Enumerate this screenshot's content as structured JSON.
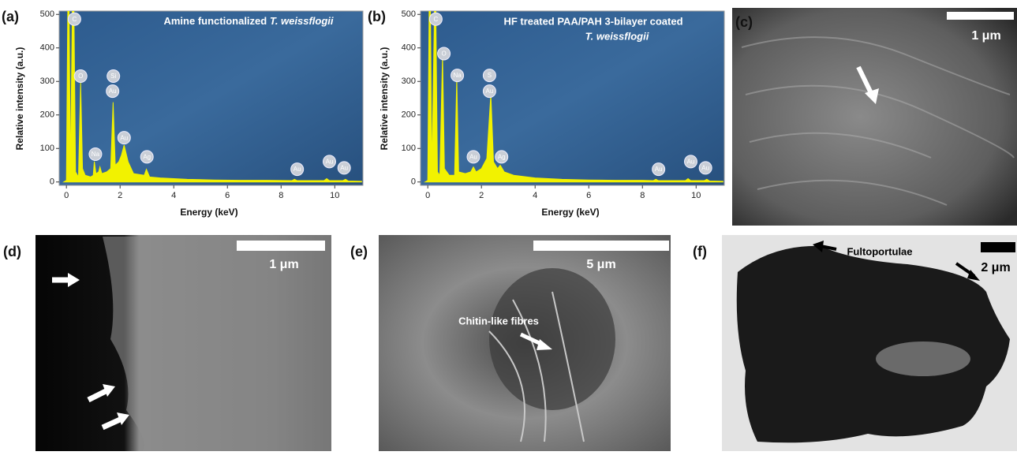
{
  "chart_data": [
    {
      "type": "area",
      "panel_label": "(a)",
      "title": [
        "Amine functionalized",
        "T. weissflogii"
      ],
      "x_label": "Energy (keV)",
      "y_label": "Relative intensity (a.u.)",
      "color": "#f2f200",
      "xlim": [
        -0.27,
        11.05
      ],
      "xticks": [
        0,
        2,
        4,
        6,
        8,
        10
      ],
      "ylim": [
        -10,
        510
      ],
      "yticks": [
        0,
        100,
        200,
        300,
        400,
        500
      ],
      "x": [
        -0.1,
        0,
        0.05,
        0.1,
        0.15,
        0.22,
        0.28,
        0.34,
        0.45,
        0.53,
        0.6,
        0.7,
        0.9,
        1.0,
        1.04,
        1.1,
        1.2,
        1.25,
        1.32,
        1.5,
        1.65,
        1.74,
        1.82,
        1.95,
        2.05,
        2.15,
        2.3,
        2.5,
        2.9,
        2.98,
        3.1,
        3.5,
        4.5,
        5.5,
        6.5,
        7.5,
        8.4,
        8.5,
        8.6,
        9.6,
        9.7,
        9.8,
        10.3,
        10.4,
        10.5,
        11
      ],
      "values": [
        0,
        5,
        510,
        510,
        20,
        510,
        510,
        30,
        15,
        297,
        40,
        20,
        15,
        20,
        61,
        25,
        30,
        45,
        25,
        30,
        40,
        238,
        50,
        60,
        80,
        110,
        60,
        25,
        20,
        38,
        15,
        12,
        8,
        6,
        5,
        5,
        4,
        8,
        4,
        4,
        10,
        4,
        4,
        8,
        3,
        2
      ],
      "annotations": [
        {
          "text": "C",
          "x": 0.3,
          "y": 486
        },
        {
          "text": "O",
          "x": 0.53,
          "y": 316
        },
        {
          "text": "Si",
          "x": 1.75,
          "y": 316
        },
        {
          "text": "Au",
          "x": 1.72,
          "y": 271
        },
        {
          "text": "Au",
          "x": 2.15,
          "y": 132
        },
        {
          "text": "Na",
          "x": 1.08,
          "y": 83
        },
        {
          "text": "Ag",
          "x": 3.0,
          "y": 75
        },
        {
          "text": "Au",
          "x": 8.6,
          "y": 38
        },
        {
          "text": "Au",
          "x": 9.8,
          "y": 61
        },
        {
          "text": "Au",
          "x": 10.35,
          "y": 42
        }
      ]
    },
    {
      "type": "area",
      "panel_label": "(b)",
      "title": [
        "HF treated PAA/PAH 3-bilayer coated",
        "T. weissflogii"
      ],
      "x_label": "Energy (keV)",
      "y_label": "Relative intensity (a.u.)",
      "color": "#f2f200",
      "xlim": [
        -0.27,
        11.05
      ],
      "xticks": [
        0,
        2,
        4,
        6,
        8,
        10
      ],
      "ylim": [
        -10,
        510
      ],
      "yticks": [
        0,
        100,
        200,
        300,
        400,
        500
      ],
      "x": [
        -0.1,
        0,
        0.05,
        0.1,
        0.15,
        0.25,
        0.3,
        0.36,
        0.45,
        0.55,
        0.62,
        0.8,
        1.0,
        1.08,
        1.15,
        1.4,
        1.6,
        1.7,
        1.8,
        2.0,
        2.2,
        2.35,
        2.45,
        2.6,
        2.7,
        2.85,
        3.2,
        4,
        5,
        6,
        7,
        8,
        8.4,
        8.5,
        8.6,
        9.6,
        9.7,
        9.8,
        10.3,
        10.4,
        10.5,
        11
      ],
      "values": [
        0,
        5,
        510,
        510,
        20,
        510,
        510,
        30,
        20,
        380,
        40,
        20,
        20,
        309,
        30,
        25,
        30,
        45,
        30,
        40,
        70,
        262,
        60,
        40,
        50,
        30,
        20,
        12,
        8,
        6,
        5,
        5,
        4,
        8,
        4,
        4,
        10,
        4,
        4,
        8,
        3,
        2
      ],
      "annotations": [
        {
          "text": "C",
          "x": 0.3,
          "y": 486
        },
        {
          "text": "O",
          "x": 0.6,
          "y": 383
        },
        {
          "text": "Na",
          "x": 1.1,
          "y": 318
        },
        {
          "text": "S",
          "x": 2.3,
          "y": 318
        },
        {
          "text": "Au",
          "x": 2.3,
          "y": 271
        },
        {
          "text": "Au",
          "x": 1.7,
          "y": 75
        },
        {
          "text": "Ag",
          "x": 2.75,
          "y": 75
        },
        {
          "text": "Au",
          "x": 8.6,
          "y": 38
        },
        {
          "text": "Au",
          "x": 9.8,
          "y": 61
        },
        {
          "text": "Au",
          "x": 10.35,
          "y": 42
        }
      ]
    }
  ],
  "images": [
    {
      "panel_label": "(c)",
      "scale": "1 μm"
    },
    {
      "panel_label": "(d)",
      "scale": "1 μm"
    },
    {
      "panel_label": "(e)",
      "scale": "5 μm",
      "annotation": "Chitin-like fibres"
    },
    {
      "panel_label": "(f)",
      "scale": "2 μm",
      "annotation": "Fultoportulae"
    }
  ]
}
